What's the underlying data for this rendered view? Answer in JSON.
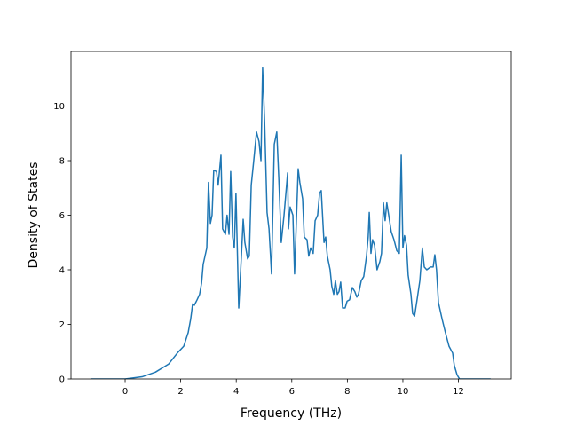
{
  "chart_data": {
    "type": "line",
    "xlabel": "Frequency (THz)",
    "ylabel": "Density of States",
    "color": "#1f77b4",
    "xlim": [
      -1.95,
      13.9
    ],
    "ylim": [
      0,
      12
    ],
    "xticks": [
      0,
      2,
      4,
      6,
      8,
      10,
      12
    ],
    "yticks": [
      0,
      2,
      4,
      6,
      8,
      10
    ],
    "x": [
      -1.25,
      0,
      0.61,
      1.09,
      1.57,
      1.88,
      2.11,
      2.27,
      2.36,
      2.43,
      2.49,
      2.59,
      2.68,
      2.75,
      2.81,
      2.94,
      3.0,
      3.07,
      3.13,
      3.19,
      3.29,
      3.35,
      3.45,
      3.51,
      3.61,
      3.67,
      3.74,
      3.8,
      3.87,
      3.93,
      3.99,
      4.09,
      4.19,
      4.25,
      4.31,
      4.41,
      4.47,
      4.54,
      4.63,
      4.73,
      4.82,
      4.89,
      4.95,
      5.02,
      5.11,
      5.18,
      5.27,
      5.37,
      5.46,
      5.53,
      5.62,
      5.72,
      5.85,
      5.88,
      5.94,
      6.04,
      6.1,
      6.23,
      6.29,
      6.39,
      6.45,
      6.55,
      6.61,
      6.68,
      6.77,
      6.84,
      6.93,
      7.0,
      7.06,
      7.16,
      7.22,
      7.28,
      7.38,
      7.44,
      7.51,
      7.57,
      7.64,
      7.7,
      7.76,
      7.83,
      7.92,
      7.99,
      8.08,
      8.18,
      8.27,
      8.34,
      8.4,
      8.5,
      8.59,
      8.69,
      8.75,
      8.79,
      8.85,
      8.91,
      8.98,
      9.07,
      9.17,
      9.23,
      9.3,
      9.36,
      9.42,
      9.49,
      9.58,
      9.68,
      9.78,
      9.87,
      9.94,
      10.0,
      10.06,
      10.13,
      10.19,
      10.29,
      10.35,
      10.42,
      10.51,
      10.61,
      10.7,
      10.77,
      10.86,
      10.99,
      11.09,
      11.15,
      11.21,
      11.28,
      11.41,
      11.53,
      11.66,
      11.79,
      11.85,
      11.95,
      12.04,
      13.16
    ],
    "values": [
      0,
      0,
      0.08,
      0.25,
      0.55,
      0.95,
      1.2,
      1.7,
      2.2,
      2.75,
      2.7,
      2.9,
      3.1,
      3.5,
      4.2,
      4.8,
      7.2,
      5.7,
      6.0,
      7.65,
      7.6,
      7.1,
      8.2,
      5.5,
      5.3,
      6.0,
      5.3,
      7.6,
      5.2,
      4.8,
      6.8,
      2.6,
      4.6,
      5.85,
      5.0,
      4.4,
      4.5,
      7.1,
      8.0,
      9.05,
      8.7,
      8.0,
      11.4,
      9.5,
      6.1,
      5.5,
      3.85,
      8.6,
      9.05,
      7.4,
      5.0,
      6.0,
      7.55,
      5.5,
      6.3,
      6.0,
      3.85,
      7.7,
      7.2,
      6.6,
      5.2,
      5.1,
      4.5,
      4.8,
      4.6,
      5.8,
      6.0,
      6.8,
      6.9,
      5.0,
      5.2,
      4.5,
      4.0,
      3.4,
      3.1,
      3.6,
      3.1,
      3.2,
      3.55,
      2.6,
      2.6,
      2.85,
      2.9,
      3.35,
      3.2,
      3.0,
      3.1,
      3.6,
      3.75,
      4.5,
      5.2,
      6.1,
      4.6,
      5.1,
      4.9,
      4.0,
      4.3,
      4.6,
      6.45,
      5.8,
      6.45,
      6.0,
      5.4,
      5.1,
      4.7,
      4.6,
      8.2,
      4.8,
      5.25,
      4.9,
      3.8,
      3.1,
      2.4,
      2.3,
      2.9,
      3.6,
      4.8,
      4.1,
      4.0,
      4.1,
      4.1,
      4.55,
      4.0,
      2.8,
      2.2,
      1.7,
      1.2,
      0.95,
      0.5,
      0.15,
      0,
      0
    ]
  }
}
